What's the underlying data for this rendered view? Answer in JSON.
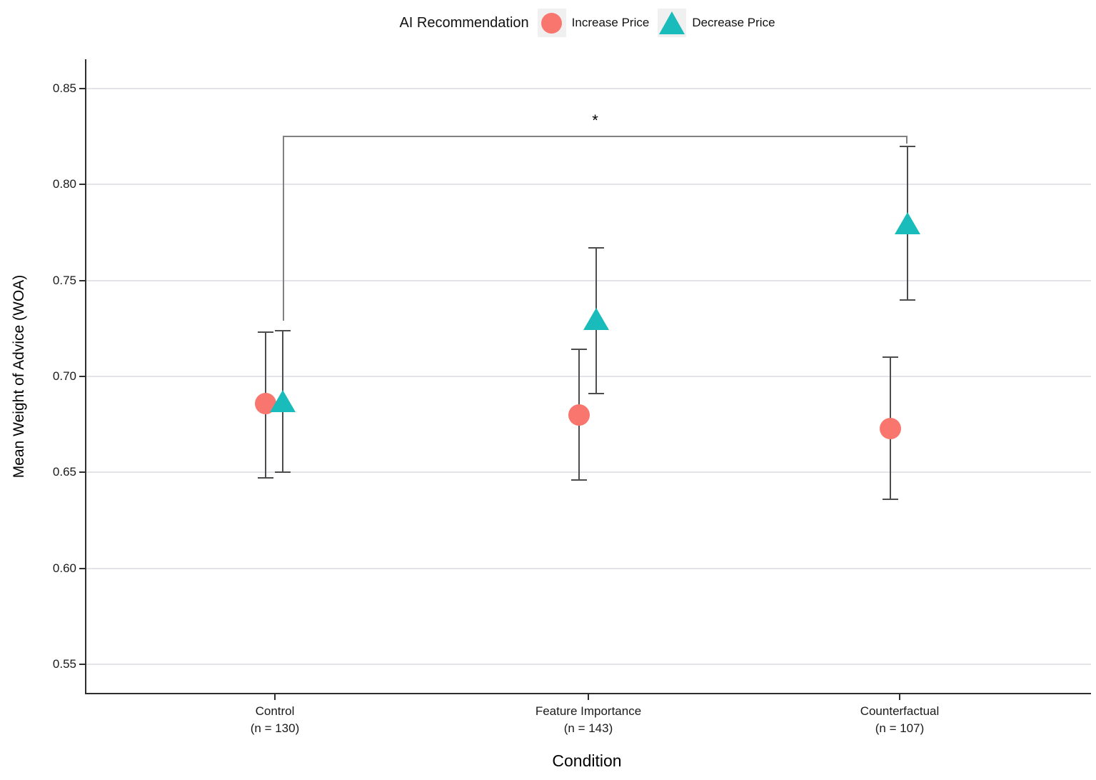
{
  "legend": {
    "title": "AI Recommendation",
    "items": [
      {
        "label": "Increase Price",
        "marker": "circle",
        "color": "#f8766d"
      },
      {
        "label": "Decrease Price",
        "marker": "triangle",
        "color": "#1abcbb"
      }
    ]
  },
  "axes": {
    "y_title": "Mean Weight of Advice (WOA)",
    "x_title": "Condition",
    "x_categories": [
      {
        "name": "Control",
        "n_label": "(n = 130)"
      },
      {
        "name": "Feature Importance",
        "n_label": "(n = 143)"
      },
      {
        "name": "Counterfactual",
        "n_label": "(n = 107)"
      }
    ]
  },
  "annotation": {
    "significance_label": "*"
  },
  "chart_data": {
    "type": "scatter",
    "title": "",
    "xlabel": "Condition",
    "ylabel": "Mean Weight of Advice (WOA)",
    "legend_title": "AI Recommendation",
    "legend_position": "top-center",
    "grid": "horizontal",
    "categories": [
      "Control (n = 130)",
      "Feature Importance (n = 143)",
      "Counterfactual (n = 107)"
    ],
    "ylim": [
      0.54,
      0.87
    ],
    "yticks": [
      0.85,
      0.8,
      0.75,
      0.7,
      0.65,
      0.6,
      0.55
    ],
    "series": [
      {
        "name": "Increase Price",
        "marker": "circle",
        "color": "#f8766d",
        "means": [
          0.686,
          0.68,
          0.673
        ],
        "ci_low": [
          0.647,
          0.646,
          0.636
        ],
        "ci_high": [
          0.723,
          0.714,
          0.71
        ]
      },
      {
        "name": "Decrease Price",
        "marker": "triangle",
        "color": "#1abcbb",
        "means": [
          0.687,
          0.73,
          0.78
        ],
        "ci_low": [
          0.65,
          0.691,
          0.74
        ],
        "ci_high": [
          0.724,
          0.767,
          0.82
        ]
      }
    ],
    "significance_bracket": {
      "label": "*",
      "between_categories": [
        0,
        2
      ],
      "series": "Decrease Price",
      "bar_y": 0.8255,
      "left_tail_bottom": 0.729,
      "right_tail_bottom": 0.8215
    }
  }
}
